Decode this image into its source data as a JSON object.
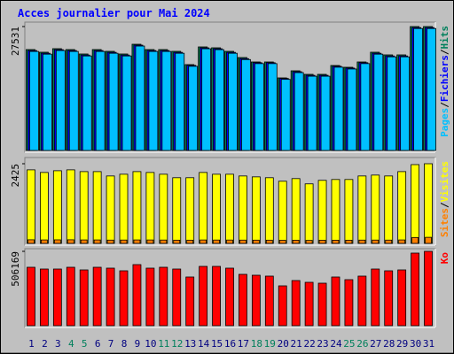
{
  "title": "Acces journalier pour Mai 2024",
  "legend_separator": "/",
  "categories": [
    "1",
    "2",
    "3",
    "4",
    "5",
    "6",
    "7",
    "8",
    "9",
    "10",
    "11",
    "12",
    "13",
    "14",
    "15",
    "16",
    "17",
    "18",
    "19",
    "20",
    "21",
    "22",
    "23",
    "24",
    "25",
    "26",
    "27",
    "28",
    "29",
    "30",
    "31"
  ],
  "category_colors": [
    "#000080",
    "#000080",
    "#000080",
    "#00805c",
    "#00805c",
    "#000080",
    "#000080",
    "#000080",
    "#000080",
    "#000080",
    "#00805c",
    "#00805c",
    "#000080",
    "#000080",
    "#000080",
    "#000080",
    "#000080",
    "#00805c",
    "#00805c",
    "#000080",
    "#000080",
    "#000080",
    "#000080",
    "#000080",
    "#00805c",
    "#00805c",
    "#000080",
    "#000080",
    "#000080",
    "#000080",
    "#000080"
  ],
  "chart_data": [
    {
      "type": "bar",
      "ylim": [
        0,
        27531
      ],
      "yticks": [
        27531
      ],
      "series": [
        {
          "name": "Hits",
          "color": "#00805c",
          "values": [
            22418,
            21828,
            22615,
            22418,
            21435,
            22418,
            22025,
            21435,
            23598,
            22418,
            22418,
            22025,
            19075,
            23008,
            22811,
            22025,
            20648,
            19665,
            19665,
            16125,
            17699,
            16912,
            16912,
            18878,
            18485,
            19665,
            21828,
            21238,
            21238,
            27531,
            27531
          ]
        },
        {
          "name": "Fichiers",
          "color": "#0000ff",
          "values": [
            22200,
            21600,
            22400,
            22200,
            21200,
            22200,
            21800,
            21200,
            23400,
            22200,
            22200,
            21800,
            18900,
            22800,
            22600,
            21800,
            20400,
            19500,
            19500,
            16000,
            17500,
            16700,
            16700,
            18700,
            18300,
            19500,
            21600,
            21000,
            21000,
            27300,
            27300
          ]
        },
        {
          "name": "Pages",
          "color": "#00c0ff",
          "values": [
            22000,
            21400,
            22200,
            22000,
            21000,
            22000,
            21600,
            21000,
            23200,
            22000,
            22000,
            21600,
            18700,
            22600,
            22400,
            21600,
            20200,
            19300,
            19300,
            15800,
            17300,
            16500,
            16500,
            18500,
            18100,
            19300,
            21400,
            20800,
            20800,
            27100,
            27100
          ]
        }
      ]
    },
    {
      "type": "bar",
      "ylim": [
        0,
        2425
      ],
      "yticks": [
        2425
      ],
      "series": [
        {
          "name": "Visites",
          "color": "#ffff00",
          "values": [
            2239,
            2159,
            2212,
            2239,
            2185,
            2185,
            2052,
            2105,
            2185,
            2159,
            2105,
            1999,
            1999,
            2159,
            2105,
            2105,
            2052,
            2025,
            1999,
            1892,
            1972,
            1812,
            1919,
            1945,
            1945,
            2052,
            2079,
            2052,
            2185,
            2398,
            2425
          ]
        },
        {
          "name": "Sites",
          "color": "#ff8000",
          "values": [
            110,
            105,
            108,
            110,
            105,
            105,
            100,
            102,
            105,
            104,
            102,
            98,
            98,
            104,
            102,
            102,
            100,
            99,
            98,
            95,
            97,
            92,
            96,
            97,
            97,
            100,
            101,
            100,
            105,
            180,
            185
          ]
        }
      ]
    },
    {
      "type": "bar",
      "ylim": [
        0,
        506169
      ],
      "yticks": [
        506169
      ],
      "series": [
        {
          "name": "Ko",
          "color": "#ff0000",
          "values": [
            397716,
            385664,
            385664,
            397716,
            379638,
            397716,
            391690,
            373612,
            415794,
            391690,
            397716,
            385664,
            331430,
            403742,
            403742,
            391690,
            349508,
            343482,
            337456,
            271170,
            307326,
            295274,
            289248,
            331430,
            313352,
            337456,
            385664,
            373612,
            379638,
            494132,
            506169
          ]
        }
      ]
    }
  ]
}
